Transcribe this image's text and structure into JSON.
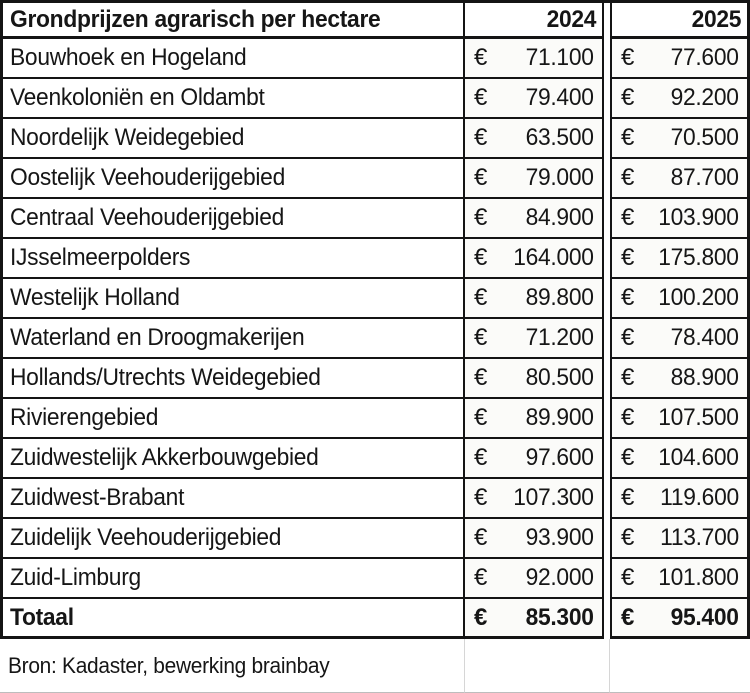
{
  "chart_data": {
    "type": "table",
    "title": "Grondprijzen agrarisch per hectare",
    "columns": [
      "Grondprijzen agrarisch per hectare",
      "2024",
      "2025"
    ],
    "header": {
      "y2024": "2024",
      "y2025": "2025"
    },
    "currency": "€",
    "rows": [
      {
        "region": "Bouwhoek en Hogeland",
        "y2024": "71.100",
        "y2025": "77.600"
      },
      {
        "region": "Veenkoloniën en Oldambt",
        "y2024": "79.400",
        "y2025": "92.200"
      },
      {
        "region": "Noordelijk Weidegebied",
        "y2024": "63.500",
        "y2025": "70.500"
      },
      {
        "region": "Oostelijk Veehouderijgebied",
        "y2024": "79.000",
        "y2025": "87.700"
      },
      {
        "region": "Centraal Veehouderijgebied",
        "y2024": "84.900",
        "y2025": "103.900"
      },
      {
        "region": "IJsselmeerpolders",
        "y2024": "164.000",
        "y2025": "175.800"
      },
      {
        "region": "Westelijk Holland",
        "y2024": "89.800",
        "y2025": "100.200"
      },
      {
        "region": "Waterland en Droogmakerijen",
        "y2024": "71.200",
        "y2025": "78.400"
      },
      {
        "region": "Hollands/Utrechts Weidegebied",
        "y2024": "80.500",
        "y2025": "88.900"
      },
      {
        "region": "Rivierengebied",
        "y2024": "89.900",
        "y2025": "107.500"
      },
      {
        "region": "Zuidwestelijk Akkerbouwgebied",
        "y2024": "97.600",
        "y2025": "104.600"
      },
      {
        "region": "Zuidwest-Brabant",
        "y2024": "107.300",
        "y2025": "119.600"
      },
      {
        "region": "Zuidelijk Veehouderijgebied",
        "y2024": "93.900",
        "y2025": "113.700"
      },
      {
        "region": "Zuid-Limburg",
        "y2024": "92.000",
        "y2025": "101.800"
      }
    ],
    "series": [
      {
        "name": "2024",
        "values": [
          71100,
          79400,
          63500,
          79000,
          84900,
          164000,
          89800,
          71200,
          80500,
          89900,
          97600,
          107300,
          93900,
          92000
        ]
      },
      {
        "name": "2025",
        "values": [
          77600,
          92200,
          70500,
          87700,
          103900,
          175800,
          100200,
          78400,
          88900,
          107500,
          104600,
          119600,
          113700,
          101800
        ]
      }
    ],
    "total": {
      "label": "Totaal",
      "y2024": "85.300",
      "y2025": "95.400",
      "values": [
        85300,
        95400
      ]
    },
    "source": "Bron: Kadaster, bewerking brainbay"
  },
  "colors": {
    "border": "#141414",
    "text": "#161616",
    "gridline": "#bdbdbd",
    "background": "#ffffff"
  }
}
